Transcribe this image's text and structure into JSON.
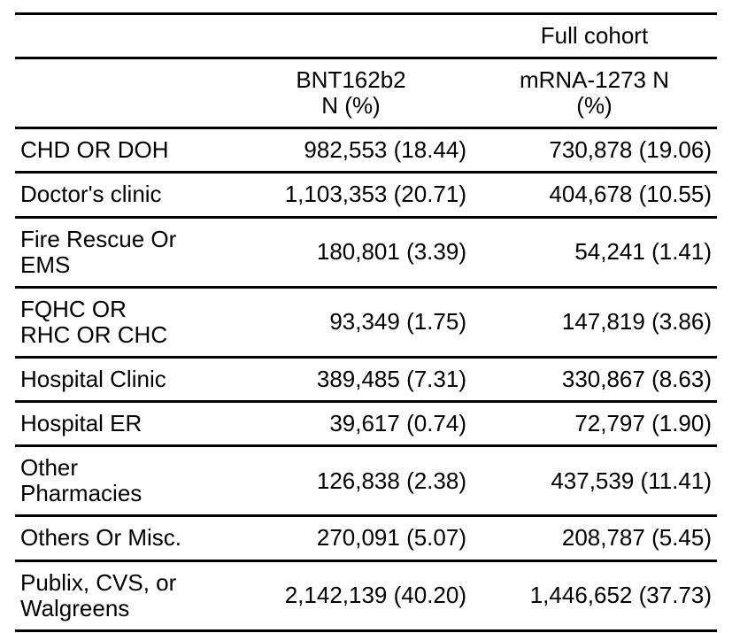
{
  "page": {
    "background_color": "#ffffff",
    "text_color": "#000000",
    "rule_color": "#000000"
  },
  "table": {
    "group_header": {
      "full_cohort": "Full cohort"
    },
    "column_headers": {
      "row_label": "",
      "bnt162b2": "BNT162b2\nN (%)",
      "mrna1273": "mRNA-1273 N\n(%)"
    },
    "rows": [
      {
        "label": "CHD OR DOH",
        "bnt162b2": "982,553 (18.44)",
        "mrna1273": "730,878 (19.06)"
      },
      {
        "label": "Doctor's clinic",
        "bnt162b2": "1,103,353 (20.71)",
        "mrna1273": "404,678 (10.55)"
      },
      {
        "label": "Fire Rescue Or\nEMS",
        "bnt162b2": "180,801 (3.39)",
        "mrna1273": "54,241 (1.41)"
      },
      {
        "label": "FQHC OR\nRHC OR CHC",
        "bnt162b2": "93,349 (1.75)",
        "mrna1273": "147,819 (3.86)"
      },
      {
        "label": "Hospital Clinic",
        "bnt162b2": "389,485 (7.31)",
        "mrna1273": "330,867 (8.63)"
      },
      {
        "label": "Hospital ER",
        "bnt162b2": "39,617 (0.74)",
        "mrna1273": "72,797 (1.90)"
      },
      {
        "label": "Other\nPharmacies",
        "bnt162b2": "126,838 (2.38)",
        "mrna1273": "437,539 (11.41)"
      },
      {
        "label": "Others Or Misc.",
        "bnt162b2": "270,091 (5.07)",
        "mrna1273": "208,787 (5.45)"
      },
      {
        "label": "Publix, CVS, or\nWalgreens",
        "bnt162b2": "2,142,139 (40.20)",
        "mrna1273": "1,446,652 (37.73)"
      }
    ]
  }
}
